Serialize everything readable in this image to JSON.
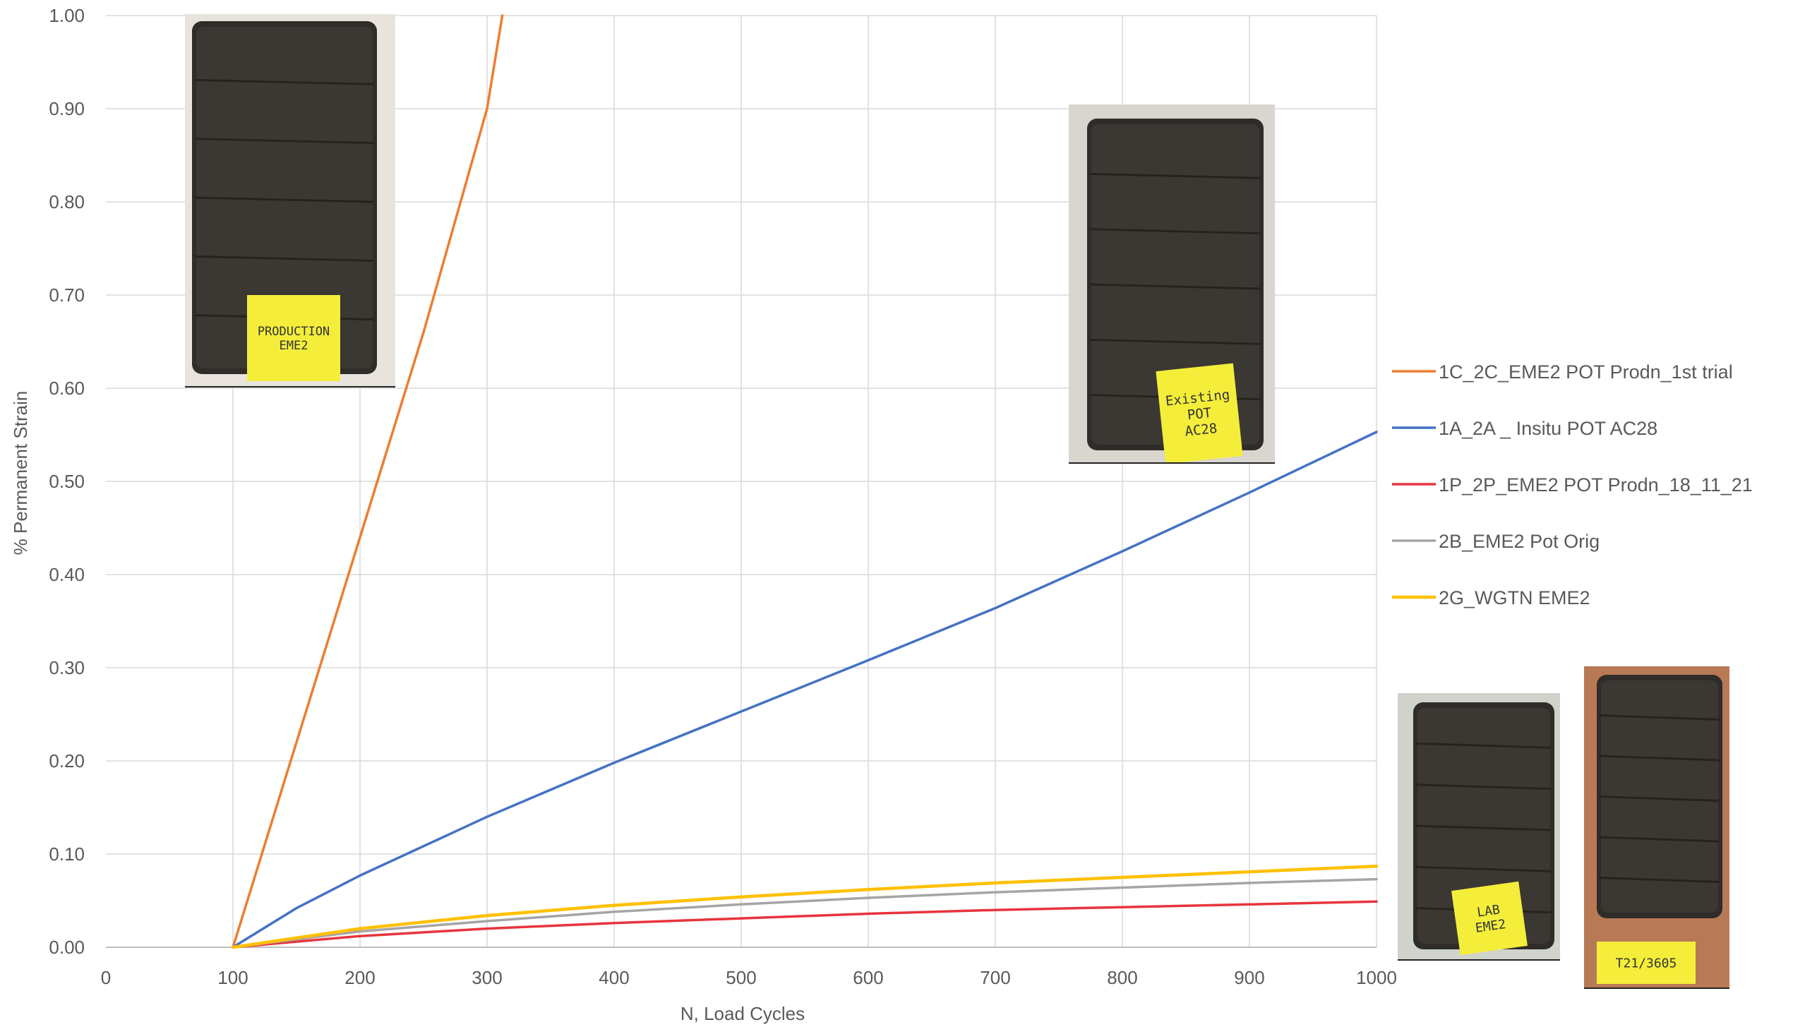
{
  "chart_data": {
    "type": "line",
    "xlabel": "N, Load Cycles",
    "ylabel": "% Permanent Strain",
    "xlim": [
      0,
      1000
    ],
    "ylim": [
      0,
      1.0
    ],
    "x_ticks": [
      "0",
      "100",
      "200",
      "300",
      "400",
      "500",
      "600",
      "700",
      "800",
      "900",
      "1000"
    ],
    "y_ticks": [
      "0.00",
      "0.10",
      "0.20",
      "0.30",
      "0.40",
      "0.50",
      "0.60",
      "0.70",
      "0.80",
      "0.90",
      "1.00"
    ],
    "grid": true,
    "legend_position": "right",
    "series": [
      {
        "name": "1C_2C_EME2 POT Prodn_1st trial",
        "color": "#ED7D31",
        "x": [
          100,
          150,
          200,
          250,
          300,
          312
        ],
        "y": [
          0.0,
          0.22,
          0.44,
          0.66,
          0.9,
          1.0
        ]
      },
      {
        "name": "1A_2A _ Insitu POT AC28",
        "color": "#4472C4",
        "x": [
          100,
          150,
          200,
          300,
          400,
          500,
          600,
          700,
          800,
          900,
          1000
        ],
        "y": [
          0.0,
          0.042,
          0.077,
          0.14,
          0.198,
          0.253,
          0.308,
          0.364,
          0.425,
          0.488,
          0.553
        ]
      },
      {
        "name": "1P_2P_EME2 POT Prodn_18_11_21",
        "color": "#E8343C",
        "x": [
          100,
          200,
          300,
          400,
          500,
          600,
          700,
          800,
          900,
          1000
        ],
        "y": [
          0.0,
          0.012,
          0.02,
          0.026,
          0.031,
          0.036,
          0.04,
          0.043,
          0.046,
          0.049
        ]
      },
      {
        "name": "2B_EME2 Pot Orig",
        "color": "#A5A5A5",
        "x": [
          100,
          200,
          300,
          400,
          500,
          600,
          700,
          800,
          900,
          1000
        ],
        "y": [
          0.0,
          0.017,
          0.028,
          0.038,
          0.046,
          0.053,
          0.059,
          0.064,
          0.069,
          0.073
        ]
      },
      {
        "name": "2G_WGTN EME2",
        "color": "#FFC000",
        "x": [
          100,
          200,
          300,
          400,
          500,
          600,
          700,
          800,
          900,
          1000
        ],
        "y": [
          0.0,
          0.02,
          0.034,
          0.045,
          0.054,
          0.062,
          0.069,
          0.075,
          0.081,
          0.087
        ]
      }
    ]
  },
  "photos": [
    {
      "name": "production-eme2-specimen-photo",
      "note_lines": [
        "PRODUCTION",
        "EME2"
      ]
    },
    {
      "name": "existing-pot-ac28-specimen-photo",
      "note_lines": [
        "Existing",
        "POT",
        "AC28"
      ]
    },
    {
      "name": "lab-eme2-specimen-photo",
      "note_lines": [
        "LAB",
        "EME2"
      ]
    },
    {
      "name": "t21-specimen-photo",
      "note_lines": [
        "T21/3605"
      ]
    }
  ]
}
